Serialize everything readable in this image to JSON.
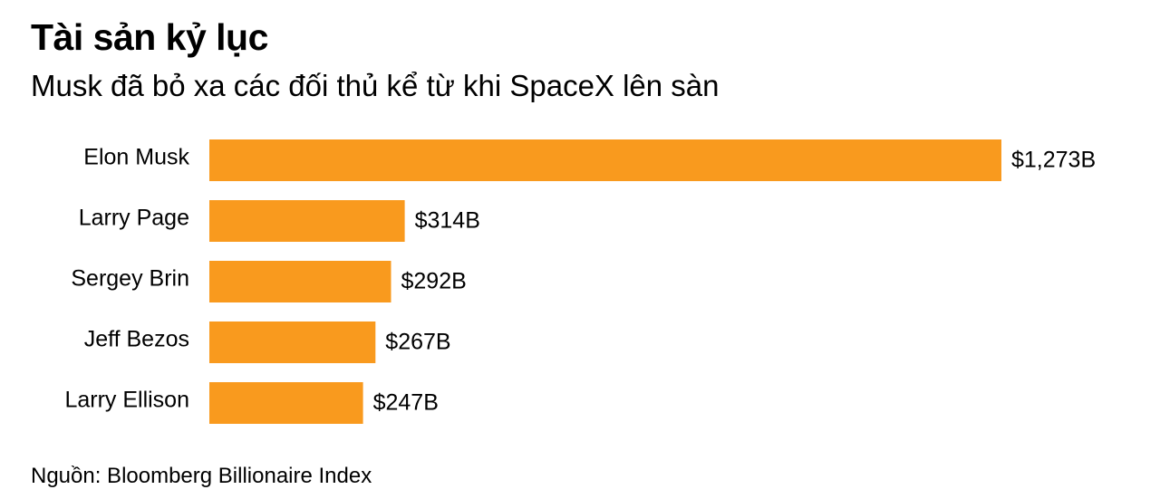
{
  "header": {
    "title": "Tài sản kỷ lục",
    "subtitle": "Musk đã bỏ xa các đối thủ kể từ khi SpaceX lên sàn"
  },
  "footer": {
    "source": "Nguồn: Bloomberg Billionaire Index"
  },
  "colors": {
    "bar": "#F99A1E",
    "text": "#000000",
    "background": "#FFFFFF"
  },
  "chart_data": {
    "type": "bar",
    "orientation": "horizontal",
    "categories": [
      "Elon Musk",
      "Larry Page",
      "Sergey Brin",
      "Jeff Bezos",
      "Larry Ellison"
    ],
    "values": [
      1273,
      314,
      292,
      267,
      247
    ],
    "data_labels": [
      "$1,273B",
      "$314B",
      "$292B",
      "$267B",
      "$247B"
    ],
    "xlim": [
      0,
      1273
    ],
    "grid": false,
    "legend": "none"
  }
}
